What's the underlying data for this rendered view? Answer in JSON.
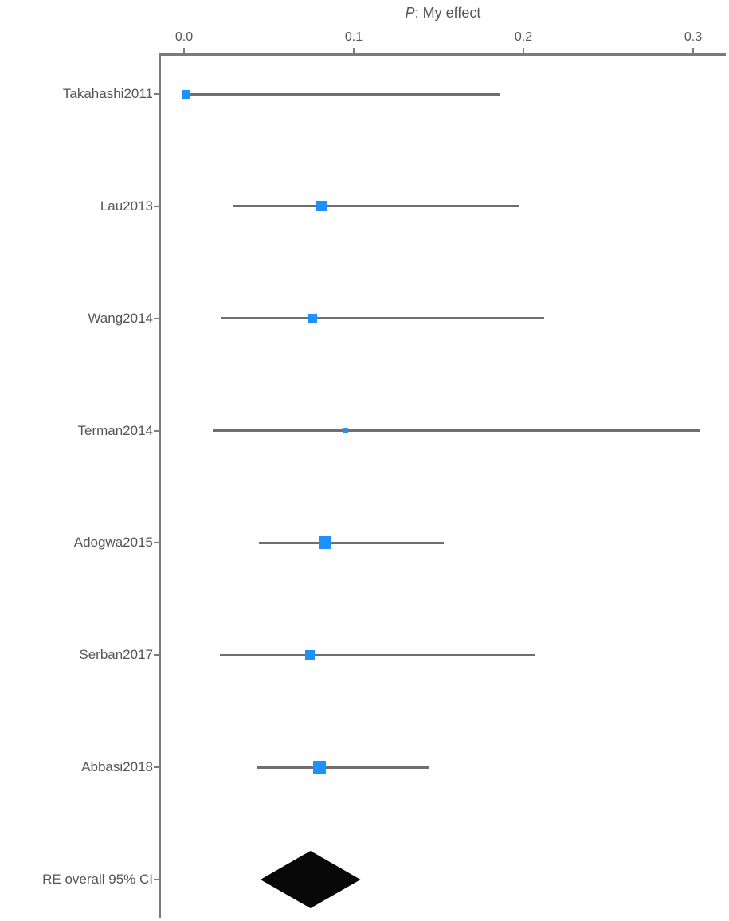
{
  "chart_data": {
    "type": "scatter",
    "subtype": "forest-plot",
    "title": "P: My effect",
    "title_prefix": "P",
    "title_rest": ": My effect",
    "grid": false,
    "legend": "none",
    "x_axis": {
      "position": "top",
      "ticks": [
        0.0,
        0.1,
        0.2,
        0.3
      ],
      "tick_labels": [
        "0.0",
        "0.1",
        "0.2",
        "0.3"
      ],
      "range": [
        -0.014,
        0.319
      ]
    },
    "marker_color": "#1E90FF",
    "ci_line_color": "#6f6f6f",
    "axis_color": "#7b7b7b",
    "diamond_color": "#070707",
    "studies": [
      {
        "label": "Takahashi2011",
        "estimate": 0.001,
        "ci_low": 0.001,
        "ci_high": 0.186,
        "marker_size": 11
      },
      {
        "label": "Lau2013",
        "estimate": 0.081,
        "ci_low": 0.029,
        "ci_high": 0.197,
        "marker_size": 13
      },
      {
        "label": "Wang2014",
        "estimate": 0.076,
        "ci_low": 0.022,
        "ci_high": 0.212,
        "marker_size": 11
      },
      {
        "label": "Terman2014",
        "estimate": 0.095,
        "ci_low": 0.017,
        "ci_high": 0.304,
        "marker_size": 7
      },
      {
        "label": "Adogwa2015",
        "estimate": 0.083,
        "ci_low": 0.044,
        "ci_high": 0.153,
        "marker_size": 16
      },
      {
        "label": "Serban2017",
        "estimate": 0.074,
        "ci_low": 0.021,
        "ci_high": 0.207,
        "marker_size": 12
      },
      {
        "label": "Abbasi2018",
        "estimate": 0.08,
        "ci_low": 0.043,
        "ci_high": 0.144,
        "marker_size": 16
      }
    ],
    "overall": {
      "label": "RE overall 95% CI",
      "estimate": 0.075,
      "ci_low": 0.045,
      "ci_high": 0.104
    }
  }
}
